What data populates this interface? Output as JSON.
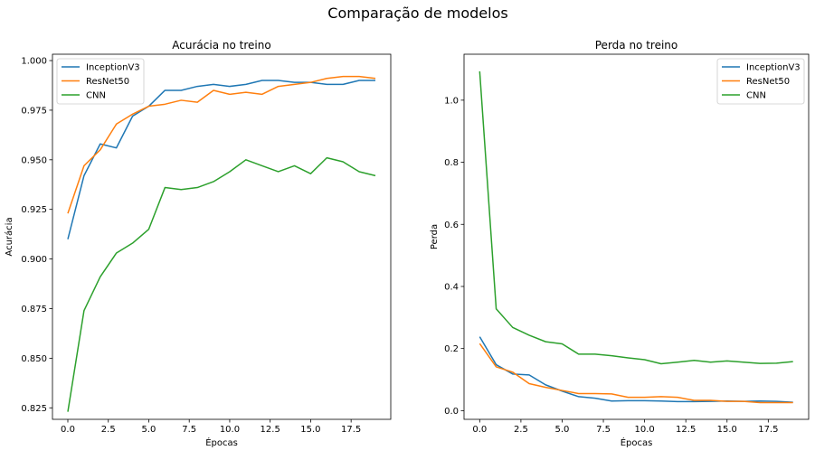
{
  "figure": {
    "suptitle": "Comparação de modelos"
  },
  "colors": {
    "InceptionV3": "#1f77b4",
    "ResNet50": "#ff7f0e",
    "CNN": "#2ca02c"
  },
  "chart_data": [
    {
      "type": "line",
      "title": "Acurácia no treino",
      "xlabel": "Épocas",
      "ylabel": "Acurácia",
      "xlim": [
        -0.95,
        19.95
      ],
      "ylim": [
        0.8192,
        1.0032
      ],
      "xticks": [
        "0.0",
        "2.5",
        "5.0",
        "7.5",
        "10.0",
        "12.5",
        "15.0",
        "17.5"
      ],
      "yticks": [
        "0.825",
        "0.850",
        "0.875",
        "0.900",
        "0.925",
        "0.950",
        "0.975",
        "1.000"
      ],
      "legend": "upper left",
      "grid": false,
      "x": [
        0,
        1,
        2,
        3,
        4,
        5,
        6,
        7,
        8,
        9,
        10,
        11,
        12,
        13,
        14,
        15,
        16,
        17,
        18,
        19
      ],
      "series": [
        {
          "name": "InceptionV3",
          "values": [
            0.91,
            0.942,
            0.958,
            0.956,
            0.972,
            0.977,
            0.985,
            0.985,
            0.987,
            0.988,
            0.987,
            0.988,
            0.99,
            0.99,
            0.989,
            0.989,
            0.988,
            0.988,
            0.99,
            0.99
          ]
        },
        {
          "name": "ResNet50",
          "values": [
            0.923,
            0.947,
            0.955,
            0.968,
            0.973,
            0.977,
            0.978,
            0.98,
            0.979,
            0.985,
            0.983,
            0.984,
            0.983,
            0.987,
            0.988,
            0.989,
            0.991,
            0.992,
            0.992,
            0.991
          ]
        },
        {
          "name": "CNN",
          "values": [
            0.823,
            0.874,
            0.891,
            0.903,
            0.908,
            0.915,
            0.936,
            0.935,
            0.936,
            0.939,
            0.944,
            0.95,
            0.947,
            0.944,
            0.947,
            0.943,
            0.951,
            0.949,
            0.944,
            0.942
          ]
        }
      ]
    },
    {
      "type": "line",
      "title": "Perda no treino",
      "xlabel": "Épocas",
      "ylabel": "Perda",
      "xlim": [
        -0.95,
        19.95
      ],
      "ylim": [
        -0.028,
        1.148
      ],
      "xticks": [
        "0.0",
        "2.5",
        "5.0",
        "7.5",
        "10.0",
        "12.5",
        "15.0",
        "17.5"
      ],
      "yticks": [
        "0.0",
        "0.2",
        "0.4",
        "0.6",
        "0.8",
        "1.0"
      ],
      "legend": "upper right",
      "grid": false,
      "x": [
        0,
        1,
        2,
        3,
        4,
        5,
        6,
        7,
        8,
        9,
        10,
        11,
        12,
        13,
        14,
        15,
        16,
        17,
        18,
        19
      ],
      "series": [
        {
          "name": "InceptionV3",
          "values": [
            0.238,
            0.148,
            0.118,
            0.115,
            0.083,
            0.063,
            0.045,
            0.04,
            0.031,
            0.032,
            0.032,
            0.031,
            0.029,
            0.029,
            0.03,
            0.031,
            0.03,
            0.031,
            0.03,
            0.027
          ]
        },
        {
          "name": "ResNet50",
          "values": [
            0.216,
            0.141,
            0.124,
            0.087,
            0.075,
            0.065,
            0.055,
            0.055,
            0.054,
            0.043,
            0.043,
            0.045,
            0.043,
            0.033,
            0.033,
            0.03,
            0.03,
            0.026,
            0.026,
            0.026
          ]
        },
        {
          "name": "CNN",
          "values": [
            1.093,
            0.328,
            0.268,
            0.243,
            0.222,
            0.215,
            0.182,
            0.182,
            0.177,
            0.17,
            0.164,
            0.151,
            0.156,
            0.162,
            0.156,
            0.16,
            0.156,
            0.152,
            0.153,
            0.158
          ]
        }
      ]
    }
  ]
}
